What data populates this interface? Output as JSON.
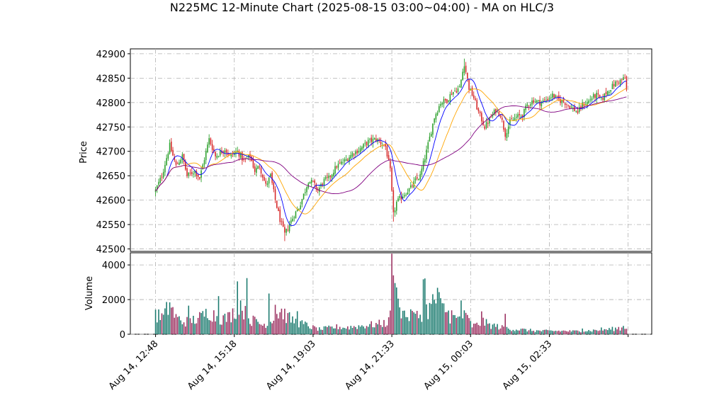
{
  "chart_data": {
    "type": "candlestick",
    "title": "N225MC 12-Minute Chart (2025-08-15 03:00~04:00) - MA on HLC/3",
    "price_panel": {
      "ylabel": "Price",
      "ylim": [
        42495,
        42910
      ],
      "yticks": [
        42500,
        42550,
        42600,
        42650,
        42700,
        42750,
        42800,
        42850,
        42900
      ],
      "grid": true
    },
    "volume_panel": {
      "ylabel": "Volume",
      "ylim": [
        0,
        4700
      ],
      "yticks": [
        0,
        2000,
        4000
      ],
      "grid": true
    },
    "xticks": [
      {
        "pos": 0,
        "label": "Aug 14, 12:48"
      },
      {
        "pos": 50,
        "label": "Aug 14, 15:18"
      },
      {
        "pos": 100,
        "label": "Aug 14, 19:03"
      },
      {
        "pos": 150,
        "label": "Aug 14, 21:33"
      },
      {
        "pos": 200,
        "label": "Aug 15, 00:03"
      },
      {
        "pos": 250,
        "label": "Aug 15, 02:33"
      }
    ],
    "xlim": [
      -16,
      315
    ],
    "bar_count": 300,
    "colors": {
      "up": "#2ca02c",
      "down": "#d62728",
      "vol_up": "#1a7a6e",
      "vol_down": "#9b3060",
      "ma_fast": "#0000ff",
      "ma_mid": "#ffa500",
      "ma_slow": "#800080"
    },
    "price_anchors": [
      [
        0,
        42620
      ],
      [
        4,
        42650
      ],
      [
        9,
        42712
      ],
      [
        13,
        42670
      ],
      [
        17,
        42690
      ],
      [
        20,
        42650
      ],
      [
        25,
        42660
      ],
      [
        28,
        42645
      ],
      [
        34,
        42725
      ],
      [
        38,
        42690
      ],
      [
        44,
        42705
      ],
      [
        47,
        42690
      ],
      [
        52,
        42700
      ],
      [
        56,
        42680
      ],
      [
        60,
        42690
      ],
      [
        63,
        42660
      ],
      [
        66,
        42670
      ],
      [
        70,
        42630
      ],
      [
        73,
        42650
      ],
      [
        76,
        42600
      ],
      [
        79,
        42560
      ],
      [
        82,
        42530
      ],
      [
        85,
        42550
      ],
      [
        88,
        42570
      ],
      [
        91,
        42585
      ],
      [
        95,
        42620
      ],
      [
        97,
        42640
      ],
      [
        100,
        42635
      ],
      [
        103,
        42620
      ],
      [
        107,
        42640
      ],
      [
        110,
        42645
      ],
      [
        115,
        42670
      ],
      [
        120,
        42680
      ],
      [
        125,
        42695
      ],
      [
        130,
        42705
      ],
      [
        135,
        42720
      ],
      [
        140,
        42725
      ],
      [
        146,
        42710
      ],
      [
        149,
        42660
      ],
      [
        151,
        42570
      ],
      [
        153,
        42595
      ],
      [
        157,
        42610
      ],
      [
        162,
        42625
      ],
      [
        165,
        42640
      ],
      [
        168,
        42650
      ],
      [
        172,
        42700
      ],
      [
        177,
        42770
      ],
      [
        181,
        42800
      ],
      [
        185,
        42805
      ],
      [
        188,
        42820
      ],
      [
        193,
        42830
      ],
      [
        196,
        42880
      ],
      [
        199,
        42830
      ],
      [
        202,
        42810
      ],
      [
        205,
        42780
      ],
      [
        209,
        42750
      ],
      [
        212,
        42765
      ],
      [
        216,
        42785
      ],
      [
        219,
        42775
      ],
      [
        222,
        42735
      ],
      [
        225,
        42760
      ],
      [
        229,
        42770
      ],
      [
        233,
        42775
      ],
      [
        236,
        42795
      ],
      [
        240,
        42805
      ],
      [
        244,
        42800
      ],
      [
        248,
        42805
      ],
      [
        252,
        42815
      ],
      [
        256,
        42805
      ],
      [
        260,
        42800
      ],
      [
        264,
        42790
      ],
      [
        268,
        42780
      ],
      [
        271,
        42795
      ],
      [
        274,
        42800
      ],
      [
        277,
        42810
      ],
      [
        280,
        42815
      ],
      [
        283,
        42805
      ],
      [
        286,
        42820
      ],
      [
        289,
        42830
      ],
      [
        292,
        42840
      ],
      [
        295,
        42845
      ],
      [
        298,
        42850
      ],
      [
        300,
        42800
      ]
    ],
    "volume_anchors": [
      [
        0,
        1150
      ],
      [
        5,
        1050
      ],
      [
        9,
        1800
      ],
      [
        13,
        1000
      ],
      [
        18,
        750
      ],
      [
        22,
        850
      ],
      [
        26,
        900
      ],
      [
        30,
        1100
      ],
      [
        34,
        1400
      ],
      [
        38,
        1100
      ],
      [
        42,
        950
      ],
      [
        46,
        1000
      ],
      [
        50,
        1350
      ],
      [
        53,
        2000
      ],
      [
        57,
        1250
      ],
      [
        60,
        850
      ],
      [
        64,
        800
      ],
      [
        68,
        550
      ],
      [
        72,
        750
      ],
      [
        76,
        1200
      ],
      [
        80,
        1400
      ],
      [
        84,
        1000
      ],
      [
        88,
        800
      ],
      [
        92,
        650
      ],
      [
        96,
        550
      ],
      [
        100,
        400
      ],
      [
        104,
        300
      ],
      [
        108,
        350
      ],
      [
        112,
        400
      ],
      [
        116,
        450
      ],
      [
        120,
        400
      ],
      [
        125,
        450
      ],
      [
        130,
        500
      ],
      [
        135,
        550
      ],
      [
        140,
        600
      ],
      [
        144,
        650
      ],
      [
        148,
        750
      ],
      [
        150,
        3200
      ],
      [
        152,
        2600
      ],
      [
        154,
        1700
      ],
      [
        157,
        1300
      ],
      [
        160,
        1100
      ],
      [
        163,
        1050
      ],
      [
        167,
        1100
      ],
      [
        170,
        1400
      ],
      [
        173,
        1500
      ],
      [
        177,
        2000
      ],
      [
        180,
        1700
      ],
      [
        184,
        1500
      ],
      [
        187,
        1100
      ],
      [
        191,
        900
      ],
      [
        195,
        1000
      ],
      [
        198,
        950
      ],
      [
        201,
        500
      ],
      [
        204,
        550
      ],
      [
        208,
        750
      ],
      [
        212,
        550
      ],
      [
        216,
        500
      ],
      [
        220,
        400
      ],
      [
        224,
        350
      ],
      [
        228,
        300
      ],
      [
        232,
        280
      ],
      [
        236,
        250
      ],
      [
        240,
        220
      ],
      [
        245,
        200
      ],
      [
        250,
        200
      ],
      [
        255,
        200
      ],
      [
        260,
        200
      ],
      [
        265,
        180
      ],
      [
        270,
        200
      ],
      [
        275,
        220
      ],
      [
        280,
        250
      ],
      [
        285,
        280
      ],
      [
        290,
        320
      ],
      [
        295,
        350
      ],
      [
        300,
        450
      ]
    ],
    "volume_spikes": [
      [
        0,
        1420
      ],
      [
        9,
        1840
      ],
      [
        21,
        1650
      ],
      [
        40,
        2200
      ],
      [
        52,
        3050
      ],
      [
        54,
        1950
      ],
      [
        58,
        3240
      ],
      [
        72,
        2350
      ],
      [
        76,
        1700
      ],
      [
        90,
        1330
      ],
      [
        150,
        4650
      ],
      [
        151,
        3400
      ],
      [
        153,
        2700
      ],
      [
        155,
        1550
      ],
      [
        163,
        1350
      ],
      [
        170,
        3170
      ],
      [
        171,
        3220
      ],
      [
        175,
        1750
      ],
      [
        177,
        1990
      ],
      [
        179,
        2680
      ],
      [
        180,
        2430
      ],
      [
        188,
        1380
      ],
      [
        194,
        1950
      ],
      [
        196,
        1380
      ],
      [
        207,
        1320
      ],
      [
        222,
        1180
      ],
      [
        271,
        330
      ],
      [
        283,
        390
      ],
      [
        294,
        420
      ],
      [
        297,
        480
      ]
    ]
  }
}
